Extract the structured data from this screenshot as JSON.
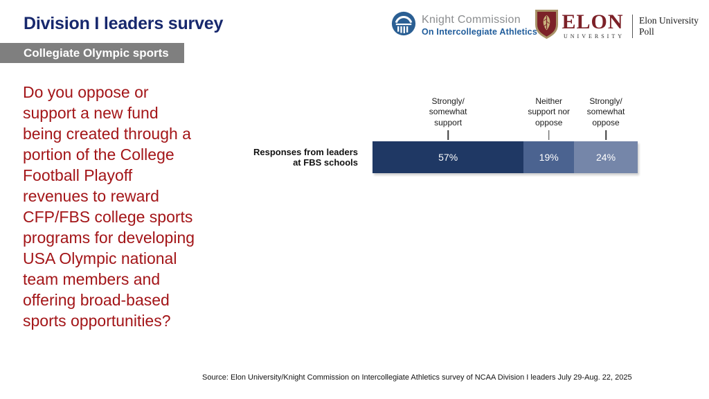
{
  "page": {
    "title": "Division I leaders survey",
    "badge": "Collegiate Olympic sports",
    "question": "Do you oppose or\nsupport a new fund\nbeing created through a\nportion of the College\nFootball Playoff\nrevenues to reward\nCFP/FBS college sports\nprograms for developing\nUSA Olympic national\nteam members and\noffering broad-based\nsports opportunities?",
    "source": "Source: Elon University/Knight Commission on Intercollegiate Athletics survey of NCAA Division I leaders July 29-Aug. 22, 2025"
  },
  "logos": {
    "knight": {
      "line1": "Knight Commission",
      "line2": "On Intercollegiate Athletics"
    },
    "elon": {
      "wordmark": "ELON",
      "sub": "UNIVERSITY",
      "poll": "Elon University\nPoll"
    }
  },
  "colors": {
    "title_navy": "#17286D",
    "badge_gray": "#7F7F7F",
    "question_red": "#A31518",
    "knight_blue": "#1F5C9B",
    "knight_icon_blue": "#2B5F93",
    "elon_maroon": "#7C2128",
    "elon_gold": "#A89267"
  },
  "chart_data": {
    "type": "bar",
    "orientation": "horizontal-stacked",
    "row_label": "Responses from leaders\nat FBS schools",
    "categories": [
      "Strongly/\nsomewhat\nsupport",
      "Neither\nsupport nor\noppose",
      "Strongly/\nsomewhat\noppose"
    ],
    "values": [
      57,
      19,
      24
    ],
    "value_labels": [
      "57%",
      "19%",
      "24%"
    ],
    "segment_colors": [
      "#1F3864",
      "#4B6390",
      "#7586A9"
    ],
    "xlim": [
      0,
      100
    ],
    "grid": false,
    "legend_position": "labels-above-bar"
  }
}
